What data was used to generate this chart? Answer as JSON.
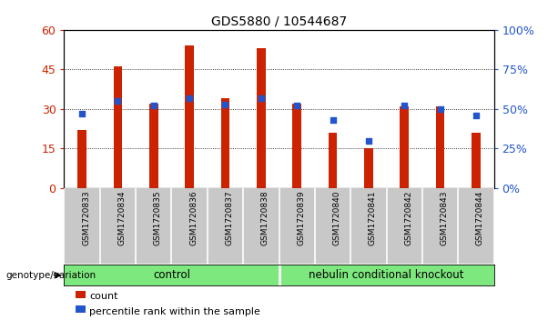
{
  "title": "GDS5880 / 10544687",
  "samples": [
    "GSM1720833",
    "GSM1720834",
    "GSM1720835",
    "GSM1720836",
    "GSM1720837",
    "GSM1720838",
    "GSM1720839",
    "GSM1720840",
    "GSM1720841",
    "GSM1720842",
    "GSM1720843",
    "GSM1720844"
  ],
  "counts": [
    22,
    46,
    32,
    54,
    34,
    53,
    32,
    21,
    15,
    31,
    31,
    21
  ],
  "percentile_ranks": [
    47,
    55,
    52,
    57,
    53,
    57,
    52,
    43,
    30,
    52,
    50,
    46
  ],
  "control_label": "control",
  "knockout_label": "nebulin conditional knockout",
  "bar_color": "#cc2200",
  "dot_color": "#2255cc",
  "left_ytick_color": "#cc2200",
  "right_ytick_color": "#2255cc",
  "ylim_left": [
    0,
    60
  ],
  "ylim_right": [
    0,
    100
  ],
  "yticks_left": [
    0,
    15,
    30,
    45,
    60
  ],
  "yticks_right": [
    0,
    25,
    50,
    75,
    100
  ],
  "ytick_labels_left": [
    "0",
    "15",
    "30",
    "45",
    "60"
  ],
  "ytick_labels_right": [
    "0%",
    "25%",
    "50%",
    "75%",
    "100%"
  ],
  "grid_color": "black",
  "grid_style": "dotted",
  "bg_xtick": "#c8c8c8",
  "group_row_color": "#7de87d",
  "bar_width": 0.25
}
